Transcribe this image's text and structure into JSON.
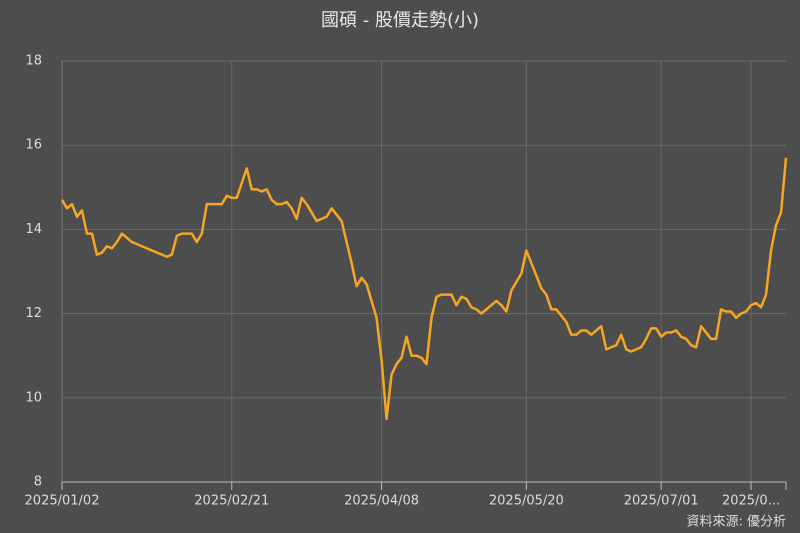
{
  "chart_data": {
    "type": "line",
    "title": "國碩 - 股價走勢(小)",
    "source": "資料來源: 優分析",
    "categories": [
      "2025/01/02",
      null,
      null,
      null,
      null,
      null,
      null,
      null,
      null,
      null,
      null,
      null,
      null,
      null,
      null,
      null,
      null,
      null,
      null,
      null,
      null,
      null,
      null,
      null,
      null,
      null,
      null,
      null,
      null,
      null,
      null,
      null,
      null,
      null,
      "2025/02/21",
      null,
      null,
      null,
      null,
      null,
      null,
      null,
      null,
      null,
      null,
      null,
      null,
      null,
      null,
      null,
      null,
      null,
      null,
      null,
      null,
      null,
      null,
      null,
      null,
      null,
      null,
      null,
      null,
      null,
      "2025/04/08",
      null,
      null,
      null,
      null,
      null,
      null,
      null,
      null,
      null,
      null,
      null,
      null,
      null,
      null,
      null,
      null,
      null,
      null,
      null,
      null,
      null,
      null,
      null,
      null,
      null,
      null,
      null,
      null,
      "2025/05/20",
      null,
      null,
      null,
      null,
      null,
      null,
      null,
      null,
      null,
      null,
      null,
      null,
      null,
      null,
      null,
      null,
      null,
      null,
      null,
      null,
      null,
      null,
      null,
      null,
      null,
      null,
      "2025/07/01",
      null,
      null,
      null,
      null,
      null,
      null,
      null,
      null,
      null,
      null,
      null,
      null,
      null,
      null,
      null,
      null,
      null,
      "2025/0...",
      null,
      null,
      null,
      null,
      null,
      null,
      null
    ],
    "values": [
      14.7,
      14.5,
      14.6,
      14.3,
      14.45,
      13.9,
      13.9,
      13.4,
      13.45,
      13.6,
      13.55,
      13.7,
      13.9,
      13.8,
      13.7,
      13.65,
      13.6,
      13.55,
      13.5,
      13.45,
      13.4,
      13.35,
      13.4,
      13.85,
      13.9,
      13.9,
      13.9,
      13.7,
      13.9,
      14.6,
      14.6,
      14.6,
      14.6,
      14.8,
      14.75,
      14.75,
      15.1,
      15.45,
      14.95,
      14.95,
      14.9,
      14.95,
      14.7,
      14.6,
      14.6,
      14.65,
      14.5,
      14.25,
      14.75,
      14.6,
      14.4,
      14.2,
      14.25,
      14.3,
      14.5,
      14.35,
      14.2,
      13.7,
      13.2,
      12.65,
      12.85,
      12.7,
      12.3,
      11.9,
      10.9,
      9.5,
      10.55,
      10.8,
      10.95,
      11.45,
      11.0,
      11.0,
      10.95,
      10.8,
      11.9,
      12.4,
      12.45,
      12.45,
      12.45,
      12.2,
      12.4,
      12.35,
      12.15,
      12.1,
      12.0,
      12.1,
      12.2,
      12.3,
      12.2,
      12.05,
      12.55,
      12.75,
      12.95,
      13.5,
      13.2,
      12.9,
      12.6,
      12.45,
      12.1,
      12.1,
      11.95,
      11.8,
      11.5,
      11.5,
      11.6,
      11.6,
      11.5,
      11.6,
      11.7,
      11.15,
      11.2,
      11.25,
      11.5,
      11.15,
      11.1,
      11.15,
      11.2,
      11.4,
      11.65,
      11.65,
      11.45,
      11.55,
      11.55,
      11.6,
      11.45,
      11.4,
      11.25,
      11.2,
      11.7,
      11.55,
      11.4,
      11.4,
      12.1,
      12.05,
      12.05,
      11.9,
      12.0,
      12.05,
      12.2,
      12.25,
      12.15,
      12.45,
      13.5,
      14.1,
      14.4,
      15.7
    ],
    "color": "#f5a623",
    "ylim": [
      8,
      18
    ],
    "yticks": [
      8,
      10,
      12,
      14,
      16,
      18
    ],
    "grid": true
  }
}
